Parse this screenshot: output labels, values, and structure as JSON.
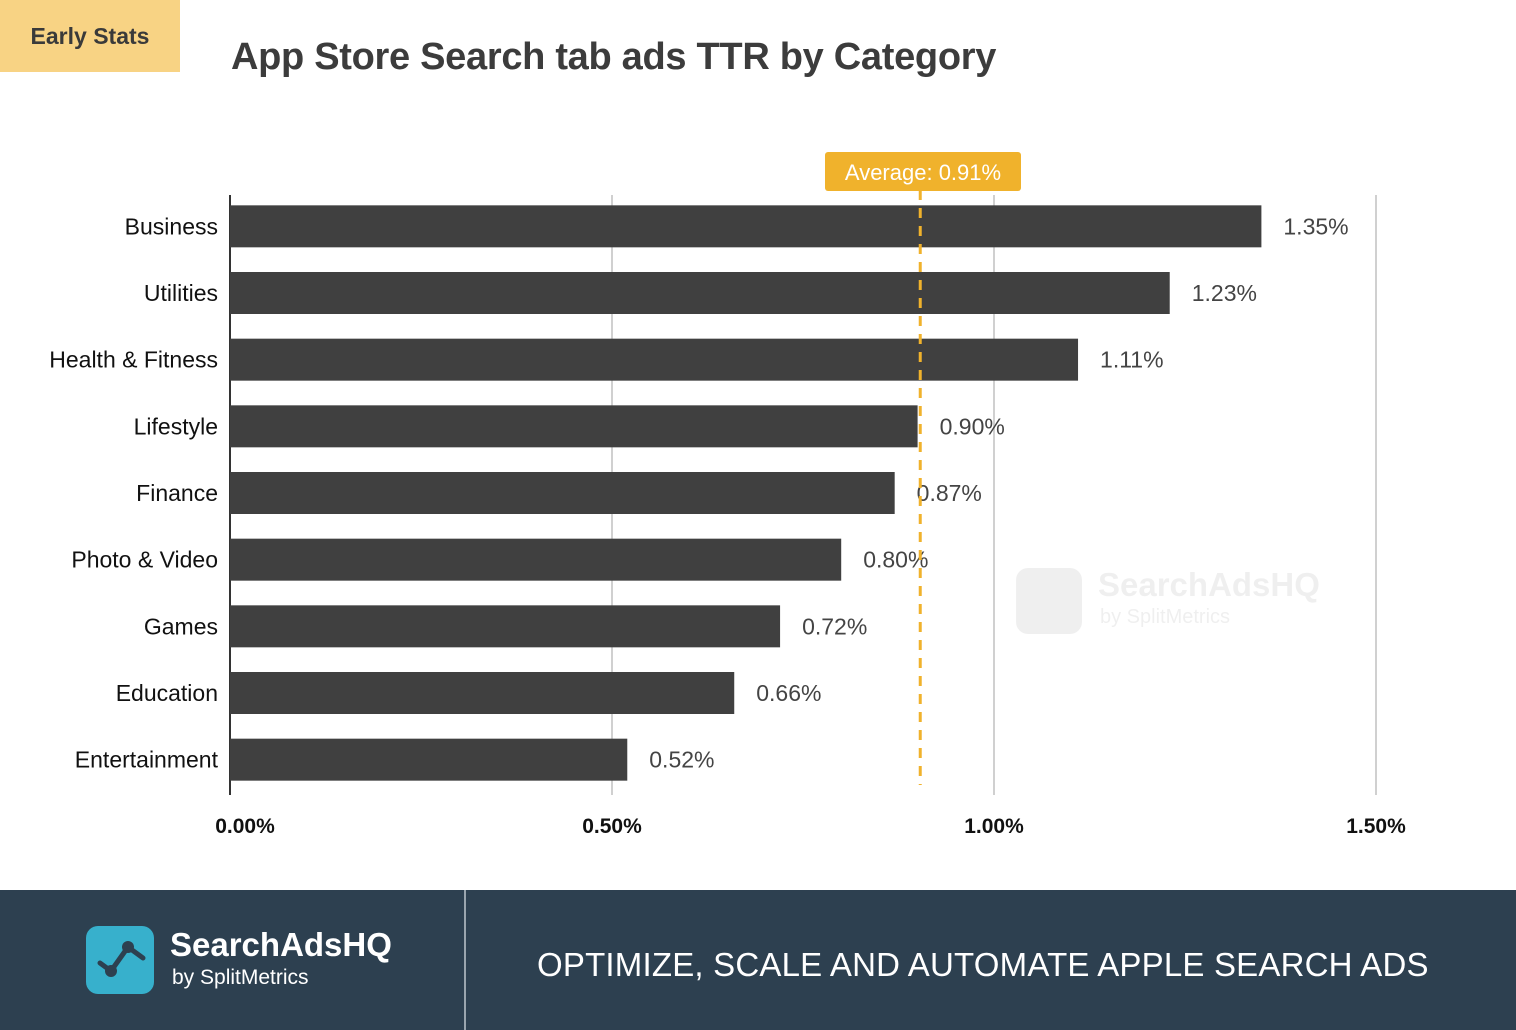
{
  "badge": "Early Stats",
  "chart_data": {
    "type": "bar",
    "orientation": "horizontal",
    "title": "App Store Search tab ads TTR by Category",
    "categories": [
      "Business",
      "Utilities",
      "Health & Fitness",
      "Lifestyle",
      "Finance",
      "Photo & Video",
      "Games",
      "Education",
      "Entertainment"
    ],
    "values": [
      1.35,
      1.23,
      1.11,
      0.9,
      0.87,
      0.8,
      0.72,
      0.66,
      0.52
    ],
    "value_labels": [
      "1.35%",
      "1.23%",
      "1.11%",
      "0.90%",
      "0.87%",
      "0.80%",
      "0.72%",
      "0.66%",
      "0.52%"
    ],
    "xlim": [
      0,
      1.5
    ],
    "xticks": [
      0,
      0.5,
      1.0,
      1.5
    ],
    "xtick_labels": [
      "0.00%",
      "0.50%",
      "1.00%",
      "1.50%"
    ],
    "grid": true,
    "average": {
      "value": 0.91,
      "label": "Average: 0.91%"
    },
    "colors": {
      "bar": "#404040",
      "average": "#f0b22c",
      "grid": "#d0d0d0"
    }
  },
  "watermark": {
    "title": "SearchAdsHQ",
    "subtitle": "by SplitMetrics"
  },
  "footer": {
    "brand": "SearchAdsHQ",
    "brand_sub": "by SplitMetrics",
    "slogan": "OPTIMIZE, SCALE AND AUTOMATE APPLE SEARCH ADS",
    "background": "#2d4050",
    "logo_color": "#37b0cc"
  }
}
